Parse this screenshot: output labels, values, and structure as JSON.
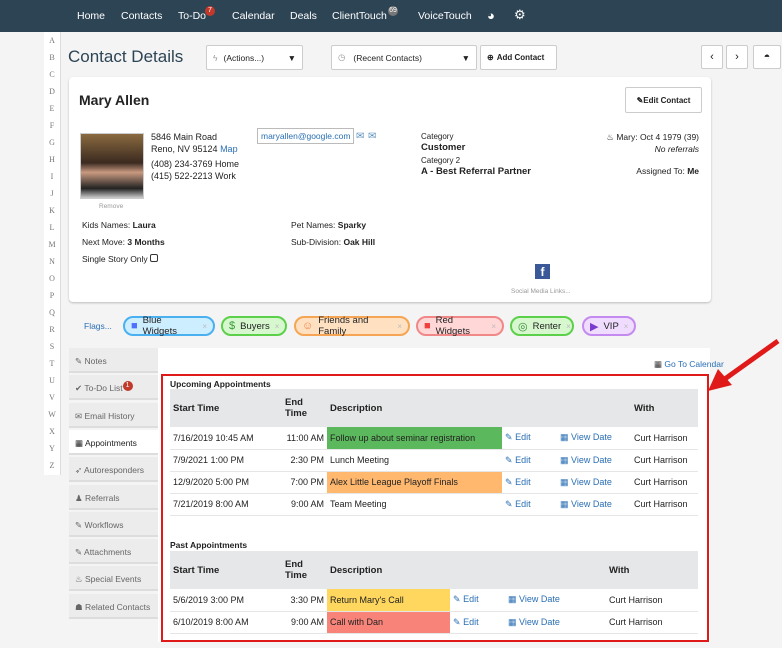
{
  "nav": {
    "items": [
      "Home",
      "Contacts",
      "To-Do",
      "Calendar",
      "Deals",
      "ClientTouch",
      "VoiceTouch"
    ],
    "todo_badge": "7",
    "clienttouch_badge": "69",
    "icons": [
      "pie-chart-icon",
      "gear-icon"
    ]
  },
  "alphabet": [
    "A",
    "B",
    "C",
    "D",
    "E",
    "F",
    "G",
    "H",
    "I",
    "J",
    "K",
    "L",
    "M",
    "N",
    "O",
    "P",
    "Q",
    "R",
    "S",
    "T",
    "U",
    "V",
    "W",
    "X",
    "Y",
    "Z"
  ],
  "header": {
    "title": "Contact Details",
    "actions": "(Actions...)",
    "recent": "(Recent Contacts)",
    "add_contact": "Add Contact"
  },
  "contact": {
    "name": "Mary Allen",
    "edit": "Edit Contact",
    "address1": "5846 Main Road",
    "address2": "Reno, NV 95124",
    "map": "Map",
    "phone_home": "(408) 234-3769 Home",
    "phone_work": "(415) 522-2213 Work",
    "email": "maryallen@google.com",
    "remove": "Remove",
    "category_label": "Category",
    "category": "Customer",
    "category2_label": "Category 2",
    "category2": "A - Best Referral Partner",
    "birthday": "Mary: Oct 4 1979 (39)",
    "referrals": "No referrals",
    "assigned_label": "Assigned To:",
    "assigned": "Me",
    "kids_label": "Kids Names:",
    "kids": "Laura",
    "next_move_label": "Next Move:",
    "next_move": "3 Months",
    "single_story": "Single Story Only",
    "pet_label": "Pet Names:",
    "pet": "Sparky",
    "subdiv_label": "Sub-Division:",
    "subdiv": "Oak Hill",
    "social": "Social Media Links..."
  },
  "flags": {
    "label": "Flags...",
    "items": [
      {
        "label": "Blue Widgets",
        "color": "#4f6fff",
        "bg": "#cdeeff",
        "border": "#4ab0f0"
      },
      {
        "label": "Buyers",
        "color": "#3a9a3a",
        "bg": "#d7f8cf",
        "border": "#5cd04a"
      },
      {
        "label": "Friends and Family",
        "color": "#f07a3a",
        "bg": "#ffe1c2",
        "border": "#f5a553"
      },
      {
        "label": "Red Widgets",
        "color": "#f04040",
        "bg": "#ffd7d7",
        "border": "#f08888"
      },
      {
        "label": "Renter",
        "color": "#3a8a3a",
        "bg": "#d7f8cf",
        "border": "#5cd04a"
      },
      {
        "label": "VIP",
        "color": "#7a3ad0",
        "bg": "#efdcff",
        "border": "#c48af0"
      }
    ]
  },
  "tabs": [
    {
      "label": "Notes",
      "icon": "edit-icon"
    },
    {
      "label": "To-Do List",
      "icon": "check-icon",
      "badge": "1"
    },
    {
      "label": "Email History",
      "icon": "envelope-icon"
    },
    {
      "label": "Appointments",
      "icon": "calendar-icon"
    },
    {
      "label": "Autoresponders",
      "icon": "send-icon"
    },
    {
      "label": "Referrals",
      "icon": "bell-icon"
    },
    {
      "label": "Workflows",
      "icon": "pencil-icon"
    },
    {
      "label": "Attachments",
      "icon": "paperclip-icon"
    },
    {
      "label": "Special Events",
      "icon": "cake-icon"
    },
    {
      "label": "Related Contacts",
      "icon": "users-icon"
    }
  ],
  "go_calendar": "Go To Calendar",
  "upcoming": {
    "title": "Upcoming Appointments",
    "headers": [
      "Start Time",
      "End Time",
      "Description",
      "",
      "",
      "With"
    ],
    "rows": [
      {
        "start": "7/16/2019 10:45 AM",
        "end": "11:00 AM",
        "desc": "Follow up about seminar registration",
        "color": "#5cb85c",
        "edit": "Edit",
        "view": "View Date",
        "with": "Curt Harrison"
      },
      {
        "start": "7/9/2021 1:00 PM",
        "end": "2:30 PM",
        "desc": "Lunch Meeting",
        "color": "",
        "edit": "Edit",
        "view": "View Date",
        "with": "Curt Harrison"
      },
      {
        "start": "12/9/2020 5:00 PM",
        "end": "7:00 PM",
        "desc": "Alex Little League Playoff Finals",
        "color": "#ffb86e",
        "edit": "Edit",
        "view": "View Date",
        "with": "Curt Harrison"
      },
      {
        "start": "7/21/2019 8:00 AM",
        "end": "9:00 AM",
        "desc": "Team Meeting",
        "color": "",
        "edit": "Edit",
        "view": "View Date",
        "with": "Curt Harrison"
      }
    ]
  },
  "past": {
    "title": "Past Appointments",
    "headers": [
      "Start Time",
      "End Time",
      "Description",
      "",
      "",
      "With"
    ],
    "rows": [
      {
        "start": "5/6/2019 3:00 PM",
        "end": "3:30 PM",
        "desc": "Return Mary's Call",
        "color": "#ffd75e",
        "edit": "Edit",
        "view": "View Date",
        "with": "Curt Harrison"
      },
      {
        "start": "6/10/2019 8:00 AM",
        "end": "9:00 AM",
        "desc": "Call with Dan",
        "color": "#f88379",
        "edit": "Edit",
        "view": "View Date",
        "with": "Curt Harrison"
      }
    ]
  }
}
